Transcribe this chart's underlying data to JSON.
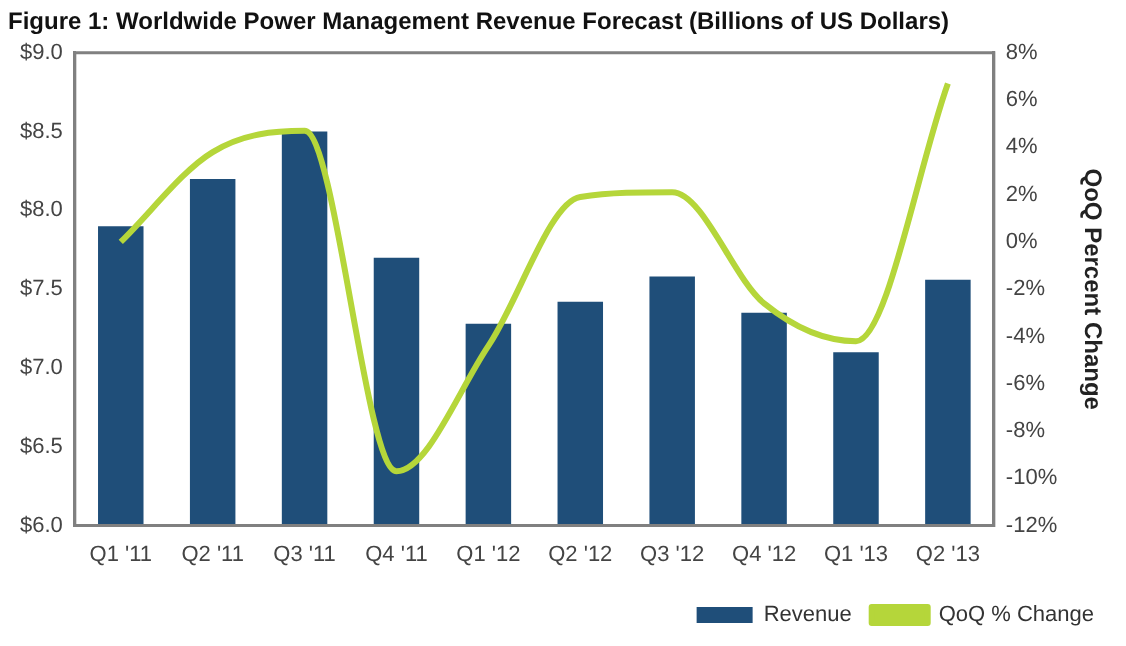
{
  "chart_data": {
    "type": "bar",
    "title": "Figure 1: Worldwide Power Management Revenue Forecast (Billions of US Dollars)",
    "y2label": "QoQ Percent Change",
    "categories": [
      "Q1 '11",
      "Q2 '11",
      "Q3 '11",
      "Q4 '11",
      "Q1 '12",
      "Q2 '12",
      "Q3 '12",
      "Q4 '12",
      "Q1 '13",
      "Q2 '13"
    ],
    "series": [
      {
        "name": "Revenue",
        "color": "#1f4e79",
        "values": [
          7.9,
          8.2,
          8.5,
          7.7,
          7.28,
          7.42,
          7.58,
          7.35,
          7.1,
          7.56
        ]
      },
      {
        "name": "QoQ % Change",
        "type": "line",
        "axis": "y2",
        "color": "#b5d63a",
        "values": [
          0,
          3.8,
          4.7,
          -9.7,
          -4.4,
          1.9,
          2.1,
          -2.6,
          -4.2,
          6.7
        ]
      }
    ],
    "ylim": [
      6,
      9
    ],
    "yticks": [
      {
        "value": 6,
        "label": "$6.0"
      },
      {
        "value": 6.5,
        "label": "$6.5"
      },
      {
        "value": 7,
        "label": "$7.0"
      },
      {
        "value": 7.5,
        "label": "$7.5"
      },
      {
        "value": 8,
        "label": "$8.0"
      },
      {
        "value": 8.5,
        "label": "$8.5"
      },
      {
        "value": 9,
        "label": "$9.0"
      }
    ],
    "y2lim": [
      -12,
      8
    ],
    "y2ticks": [
      {
        "value": -12,
        "label": "-12%"
      },
      {
        "value": -10,
        "label": "-10%"
      },
      {
        "value": -8,
        "label": "-8%"
      },
      {
        "value": -6,
        "label": "-6%"
      },
      {
        "value": -4,
        "label": "-4%"
      },
      {
        "value": -2,
        "label": "-2%"
      },
      {
        "value": 0,
        "label": "0%"
      },
      {
        "value": 2,
        "label": "2%"
      },
      {
        "value": 4,
        "label": "4%"
      },
      {
        "value": 6,
        "label": "6%"
      },
      {
        "value": 8,
        "label": "8%"
      }
    ],
    "grid": false,
    "legend": "bottom",
    "marker": "none"
  }
}
